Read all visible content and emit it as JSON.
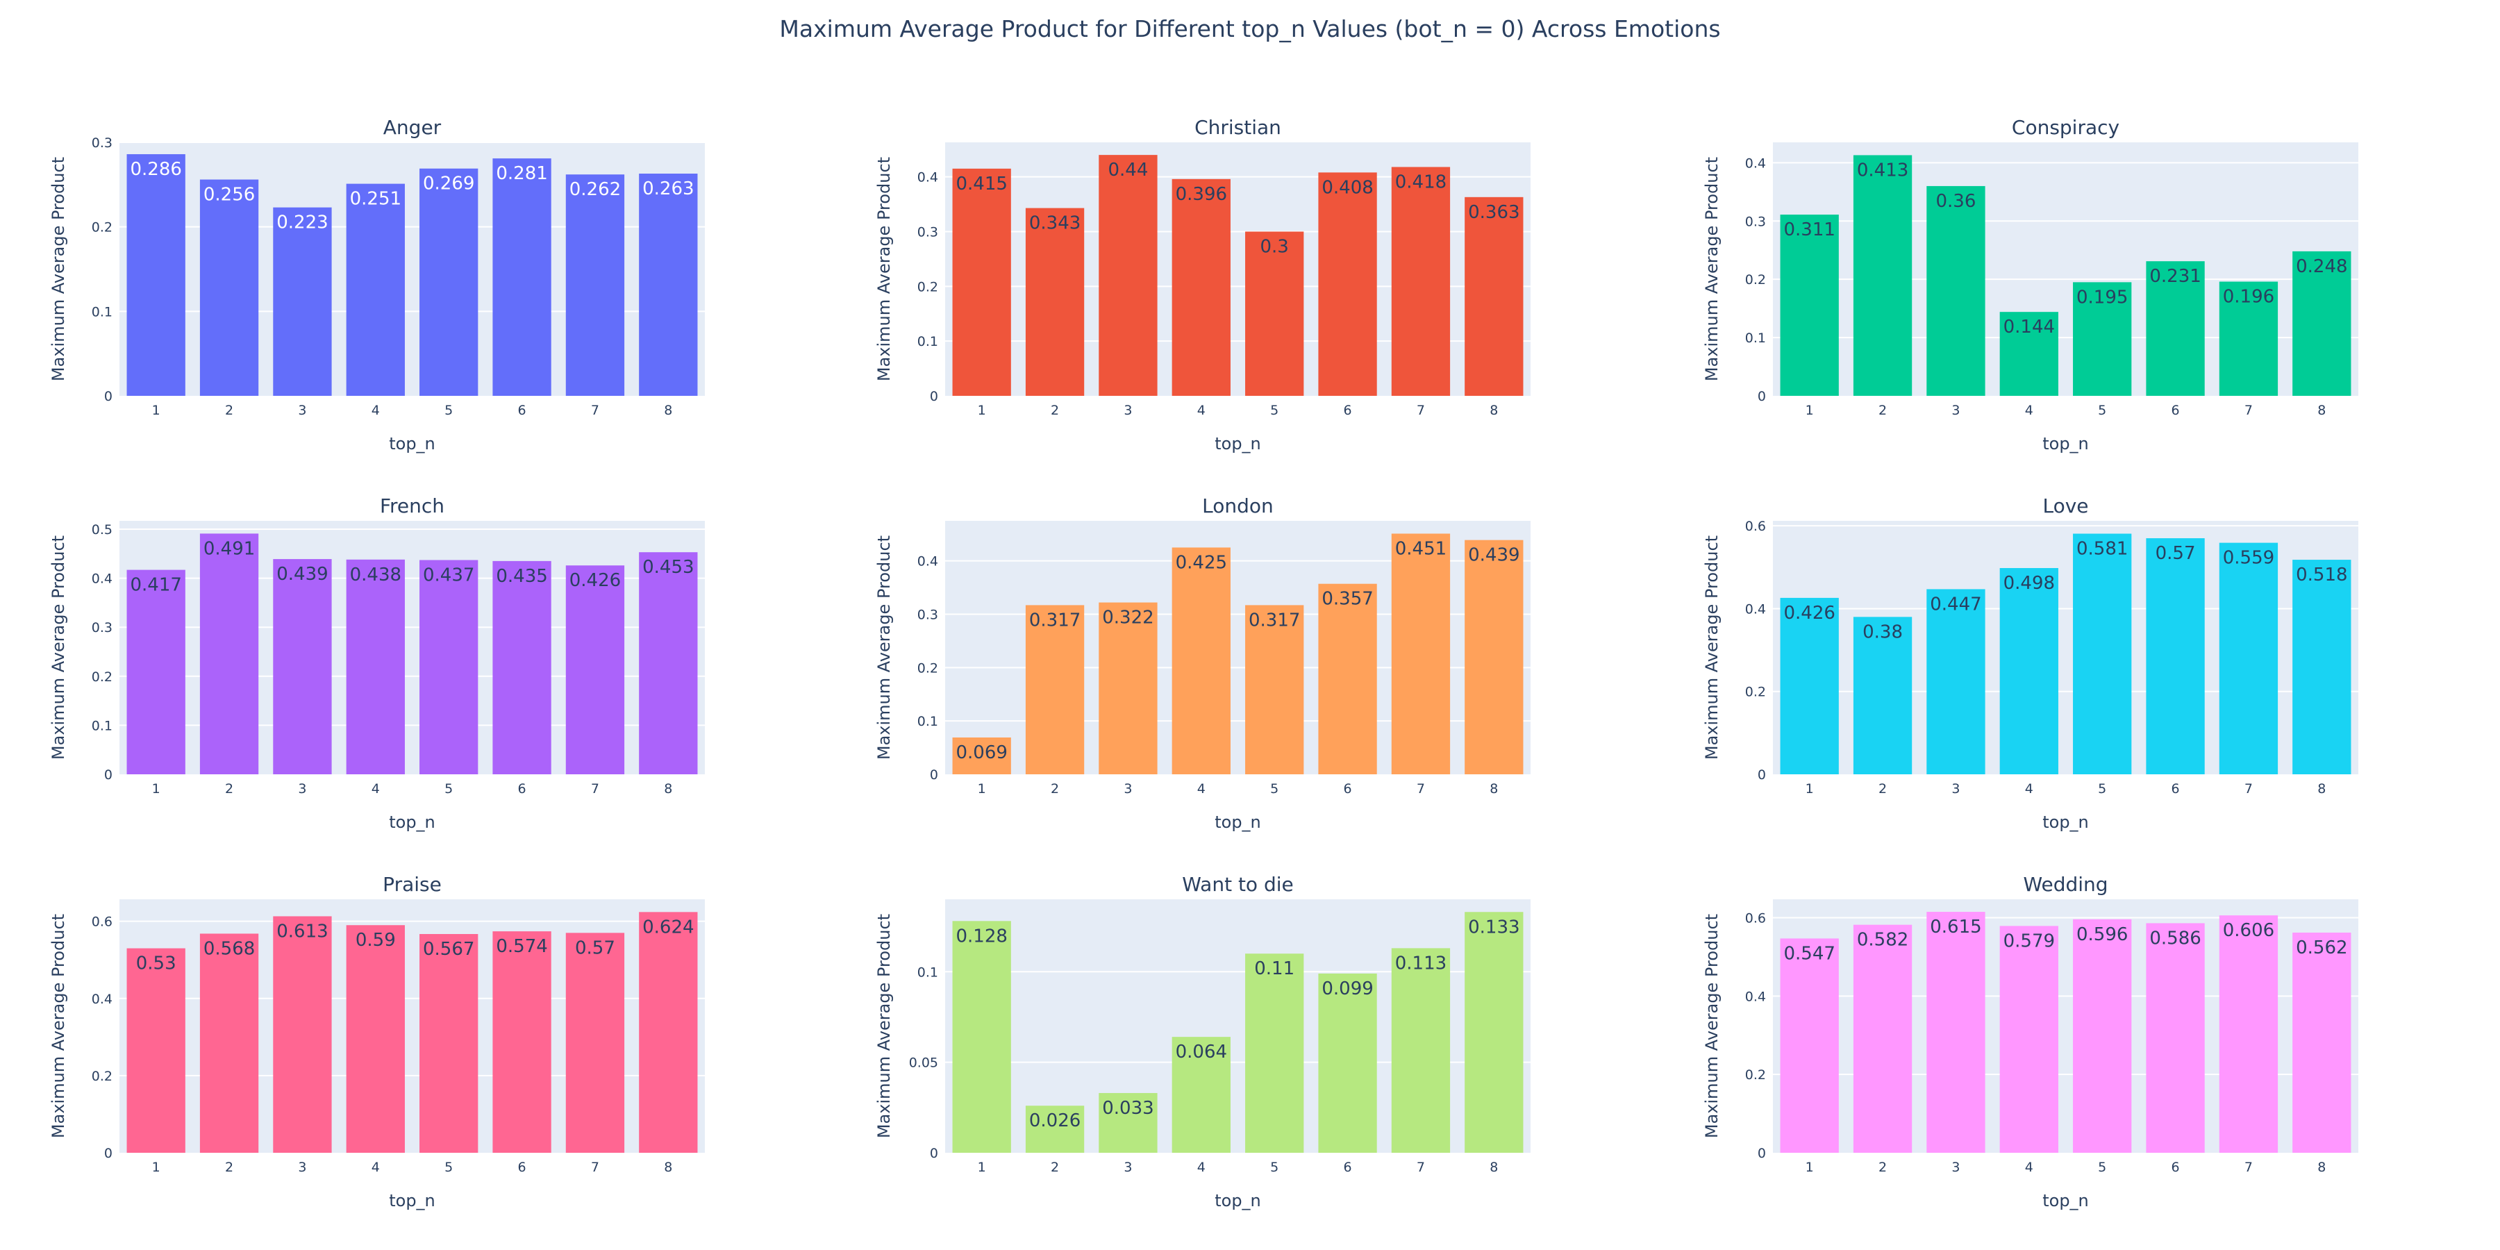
{
  "title": "Maximum Average Product for Different top_n Values (bot_n = 0) Across Emotions",
  "chart_data": [
    {
      "type": "bar",
      "title": "Anger",
      "color": "#636efa",
      "label_color": "#ffffff",
      "categories": [
        "1",
        "2",
        "3",
        "4",
        "5",
        "6",
        "7",
        "8"
      ],
      "values": [
        0.286,
        0.256,
        0.223,
        0.251,
        0.269,
        0.281,
        0.262,
        0.263
      ],
      "labels": [
        "0.286",
        "0.256",
        "0.223",
        "0.251",
        "0.269",
        "0.281",
        "0.262",
        "0.263"
      ],
      "xlabel": "top_n",
      "ylabel": "Maximum Average Product",
      "ylim": [
        0,
        0.3
      ],
      "yticks": [
        0,
        0.1,
        0.2,
        0.3
      ],
      "ytick_labels": [
        "0",
        "0.1",
        "0.2",
        "0.3"
      ]
    },
    {
      "type": "bar",
      "title": "Christian",
      "color": "#ef553b",
      "label_color": "#2a3f5f",
      "categories": [
        "1",
        "2",
        "3",
        "4",
        "5",
        "6",
        "7",
        "8"
      ],
      "values": [
        0.415,
        0.343,
        0.44,
        0.396,
        0.3,
        0.408,
        0.418,
        0.363
      ],
      "labels": [
        "0.415",
        "0.343",
        "0.44",
        "0.396",
        "0.3",
        "0.408",
        "0.418",
        "0.363"
      ],
      "xlabel": "top_n",
      "ylabel": "Maximum Average Product",
      "ylim": [
        0,
        0.463
      ],
      "yticks": [
        0,
        0.1,
        0.2,
        0.3,
        0.4
      ],
      "ytick_labels": [
        "0",
        "0.1",
        "0.2",
        "0.3",
        "0.4"
      ]
    },
    {
      "type": "bar",
      "title": "Conspiracy",
      "color": "#00cc96",
      "label_color": "#2a3f5f",
      "categories": [
        "1",
        "2",
        "3",
        "4",
        "5",
        "6",
        "7",
        "8"
      ],
      "values": [
        0.311,
        0.413,
        0.36,
        0.144,
        0.195,
        0.231,
        0.196,
        0.248
      ],
      "labels": [
        "0.311",
        "0.413",
        "0.36",
        "0.144",
        "0.195",
        "0.231",
        "0.196",
        "0.248"
      ],
      "xlabel": "top_n",
      "ylabel": "Maximum Average Product",
      "ylim": [
        0,
        0.435
      ],
      "yticks": [
        0,
        0.1,
        0.2,
        0.3,
        0.4
      ],
      "ytick_labels": [
        "0",
        "0.1",
        "0.2",
        "0.3",
        "0.4"
      ]
    },
    {
      "type": "bar",
      "title": "French",
      "color": "#ab63fa",
      "label_color": "#2a3f5f",
      "categories": [
        "1",
        "2",
        "3",
        "4",
        "5",
        "6",
        "7",
        "8"
      ],
      "values": [
        0.417,
        0.491,
        0.439,
        0.438,
        0.437,
        0.435,
        0.426,
        0.453
      ],
      "labels": [
        "0.417",
        "0.491",
        "0.439",
        "0.438",
        "0.437",
        "0.435",
        "0.426",
        "0.453"
      ],
      "xlabel": "top_n",
      "ylabel": "Maximum Average Product",
      "ylim": [
        0,
        0.517
      ],
      "yticks": [
        0,
        0.1,
        0.2,
        0.3,
        0.4,
        0.5
      ],
      "ytick_labels": [
        "0",
        "0.1",
        "0.2",
        "0.3",
        "0.4",
        "0.5"
      ]
    },
    {
      "type": "bar",
      "title": "London",
      "color": "#ffa15a",
      "label_color": "#2a3f5f",
      "categories": [
        "1",
        "2",
        "3",
        "4",
        "5",
        "6",
        "7",
        "8"
      ],
      "values": [
        0.069,
        0.317,
        0.322,
        0.425,
        0.317,
        0.357,
        0.451,
        0.439
      ],
      "labels": [
        "0.069",
        "0.317",
        "0.322",
        "0.425",
        "0.317",
        "0.357",
        "0.451",
        "0.439"
      ],
      "xlabel": "top_n",
      "ylabel": "Maximum Average Product",
      "ylim": [
        0,
        0.475
      ],
      "yticks": [
        0,
        0.1,
        0.2,
        0.3,
        0.4
      ],
      "ytick_labels": [
        "0",
        "0.1",
        "0.2",
        "0.3",
        "0.4"
      ]
    },
    {
      "type": "bar",
      "title": "Love",
      "color": "#19d3f3",
      "label_color": "#2a3f5f",
      "categories": [
        "1",
        "2",
        "3",
        "4",
        "5",
        "6",
        "7",
        "8"
      ],
      "values": [
        0.426,
        0.38,
        0.447,
        0.498,
        0.581,
        0.57,
        0.559,
        0.518
      ],
      "labels": [
        "0.426",
        "0.38",
        "0.447",
        "0.498",
        "0.581",
        "0.57",
        "0.559",
        "0.518"
      ],
      "xlabel": "top_n",
      "ylabel": "Maximum Average Product",
      "ylim": [
        0,
        0.612
      ],
      "yticks": [
        0,
        0.2,
        0.4,
        0.6
      ],
      "ytick_labels": [
        "0",
        "0.2",
        "0.4",
        "0.6"
      ]
    },
    {
      "type": "bar",
      "title": "Praise",
      "color": "#ff6692",
      "label_color": "#2a3f5f",
      "categories": [
        "1",
        "2",
        "3",
        "4",
        "5",
        "6",
        "7",
        "8"
      ],
      "values": [
        0.53,
        0.568,
        0.613,
        0.59,
        0.567,
        0.574,
        0.57,
        0.624
      ],
      "labels": [
        "0.53",
        "0.568",
        "0.613",
        "0.59",
        "0.567",
        "0.574",
        "0.57",
        "0.624"
      ],
      "xlabel": "top_n",
      "ylabel": "Maximum Average Product",
      "ylim": [
        0,
        0.657
      ],
      "yticks": [
        0,
        0.2,
        0.4,
        0.6
      ],
      "ytick_labels": [
        "0",
        "0.2",
        "0.4",
        "0.6"
      ]
    },
    {
      "type": "bar",
      "title": "Want to die",
      "color": "#b6e880",
      "label_color": "#2a3f5f",
      "categories": [
        "1",
        "2",
        "3",
        "4",
        "5",
        "6",
        "7",
        "8"
      ],
      "values": [
        0.128,
        0.026,
        0.033,
        0.064,
        0.11,
        0.099,
        0.113,
        0.133
      ],
      "labels": [
        "0.128",
        "0.026",
        "0.033",
        "0.064",
        "0.11",
        "0.099",
        "0.113",
        "0.133"
      ],
      "xlabel": "top_n",
      "ylabel": "Maximum Average Product",
      "ylim": [
        0,
        0.14
      ],
      "yticks": [
        0,
        0.05,
        0.1
      ],
      "ytick_labels": [
        "0",
        "0.05",
        "0.1"
      ]
    },
    {
      "type": "bar",
      "title": "Wedding",
      "color": "#ff97ff",
      "label_color": "#2a3f5f",
      "categories": [
        "1",
        "2",
        "3",
        "4",
        "5",
        "6",
        "7",
        "8"
      ],
      "values": [
        0.547,
        0.582,
        0.615,
        0.579,
        0.596,
        0.586,
        0.606,
        0.562
      ],
      "labels": [
        "0.547",
        "0.582",
        "0.615",
        "0.579",
        "0.596",
        "0.586",
        "0.606",
        "0.562"
      ],
      "xlabel": "top_n",
      "ylabel": "Maximum Average Product",
      "ylim": [
        0,
        0.647
      ],
      "yticks": [
        0,
        0.2,
        0.4,
        0.6
      ],
      "ytick_labels": [
        "0",
        "0.2",
        "0.4",
        "0.6"
      ]
    }
  ]
}
